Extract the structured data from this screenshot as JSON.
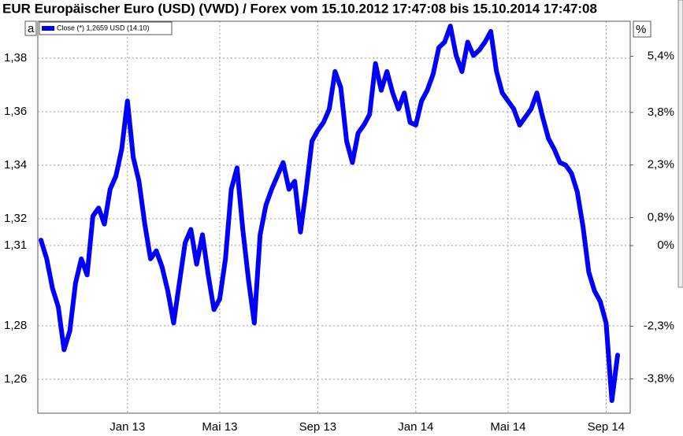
{
  "chart_data": {
    "type": "line",
    "title": "EUR Europäischer Euro (USD) (VWD) / Forex vom 15.10.2012 17:47:08 bis 15.10.2014 17:47:08",
    "left_axis_label": "a",
    "right_axis_label": "%",
    "categories": [
      null,
      null,
      null,
      null,
      null,
      null,
      null,
      null,
      null,
      null,
      null,
      null,
      null,
      null,
      null,
      "Jan 13",
      null,
      null,
      null,
      null,
      null,
      null,
      null,
      null,
      null,
      null,
      null,
      null,
      null,
      null,
      null,
      "Mai 13",
      null,
      null,
      null,
      null,
      null,
      null,
      null,
      null,
      null,
      null,
      null,
      null,
      null,
      null,
      null,
      null,
      "Sep 13",
      null,
      null,
      null,
      null,
      null,
      null,
      null,
      null,
      null,
      null,
      null,
      null,
      null,
      null,
      null,
      null,
      "Jan 14",
      null,
      null,
      null,
      null,
      null,
      null,
      null,
      null,
      null,
      null,
      null,
      null,
      null,
      null,
      null,
      "Mai 14",
      null,
      null,
      null,
      null,
      null,
      null,
      null,
      null,
      null,
      null,
      null,
      null,
      null,
      null,
      null,
      null,
      "Sep 14",
      null,
      null
    ],
    "series": [
      {
        "name": "Close (*) 1,2659 USD (14.10)",
        "color": "#0000ff",
        "values": [
          1.312,
          1.305,
          1.294,
          1.287,
          1.271,
          1.278,
          1.296,
          1.305,
          1.299,
          1.321,
          1.324,
          1.318,
          1.331,
          1.336,
          1.346,
          1.364,
          1.343,
          1.334,
          1.318,
          1.305,
          1.308,
          1.302,
          1.293,
          1.281,
          1.296,
          1.311,
          1.316,
          1.303,
          1.314,
          1.299,
          1.286,
          1.29,
          1.305,
          1.331,
          1.339,
          1.316,
          1.297,
          1.281,
          1.314,
          1.325,
          1.331,
          1.336,
          1.341,
          1.331,
          1.334,
          1.315,
          1.331,
          1.349,
          1.353,
          1.356,
          1.361,
          1.375,
          1.369,
          1.349,
          1.341,
          1.352,
          1.355,
          1.359,
          1.378,
          1.368,
          1.375,
          1.367,
          1.361,
          1.367,
          1.356,
          1.355,
          1.364,
          1.368,
          1.374,
          1.384,
          1.386,
          1.392,
          1.381,
          1.375,
          1.386,
          1.381,
          1.383,
          1.386,
          1.39,
          1.375,
          1.367,
          1.364,
          1.361,
          1.355,
          1.358,
          1.361,
          1.367,
          1.358,
          1.35,
          1.346,
          1.341,
          1.34,
          1.337,
          1.33,
          1.317,
          1.3,
          1.293,
          1.289,
          1.281,
          1.252,
          1.269
        ]
      }
    ],
    "ylim": [
      1.2473,
      1.3938
    ],
    "yticks": [
      {
        "value": 1.26,
        "label": "1,26"
      },
      {
        "value": 1.28,
        "label": "1,28"
      },
      {
        "value": 1.31,
        "label": "1,31"
      },
      {
        "value": 1.32,
        "label": "1,32"
      },
      {
        "value": 1.34,
        "label": "1,34"
      },
      {
        "value": 1.36,
        "label": "1,36"
      },
      {
        "value": 1.38,
        "label": "1,38"
      }
    ],
    "y2lim": [
      -4.78,
      6.4
    ],
    "y2ticks": [
      {
        "value": -3.8,
        "label": "-3,8%"
      },
      {
        "value": -2.3,
        "label": "-2,3%"
      },
      {
        "value": 0,
        "label": "0%"
      },
      {
        "value": 0.8,
        "label": "0,8%"
      },
      {
        "value": 2.3,
        "label": "2,3%"
      },
      {
        "value": 3.8,
        "label": "3,8%"
      },
      {
        "value": 5.4,
        "label": "5,4%"
      }
    ],
    "grid": true
  }
}
